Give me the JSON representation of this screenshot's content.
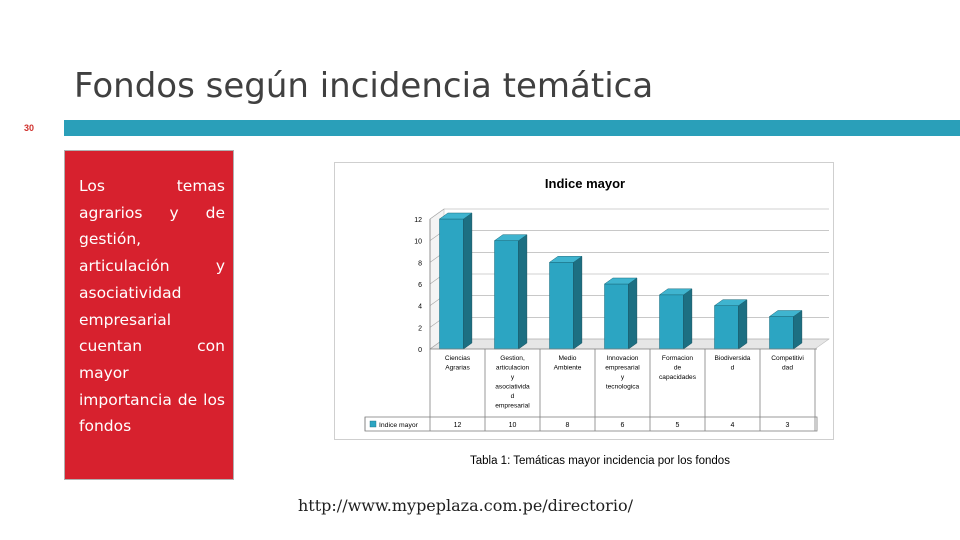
{
  "slide": {
    "title": "Fondos según incidencia temática",
    "number": "30",
    "accent_color": "#2a9fb9",
    "box_color": "#d7212e",
    "box_text": "Los temas agrarios y de gestión, articulación y asociatividad empresarial cuentan con mayor importancia de los fondos",
    "caption": "Tabla 1: Temáticas mayor incidencia por los fondos",
    "url": "http://www.mypeplaza.com.pe/directorio/"
  },
  "chart_data": {
    "type": "bar",
    "title": "Indice mayor",
    "categories": [
      [
        "Ciencias",
        "Agrarias"
      ],
      [
        "Gestion,",
        "articulacion",
        "y",
        "asociativida",
        "d",
        "empresarial"
      ],
      [
        "Medio",
        "Ambiente"
      ],
      [
        "Innovacion",
        "empresarial",
        "y",
        "tecnologica"
      ],
      [
        "Formacion",
        "de",
        "capacidades"
      ],
      [
        "Biodiversida",
        "d"
      ],
      [
        "Competitivi",
        "dad"
      ]
    ],
    "series": [
      {
        "name": "Indice mayor",
        "values": [
          12,
          10,
          8,
          6,
          5,
          4,
          3
        ],
        "color": "#2ca5c2"
      }
    ],
    "ylim": [
      0,
      12
    ],
    "yticks": [
      0,
      2,
      4,
      6,
      8,
      10,
      12
    ],
    "grid": true,
    "legend": "data-table"
  }
}
